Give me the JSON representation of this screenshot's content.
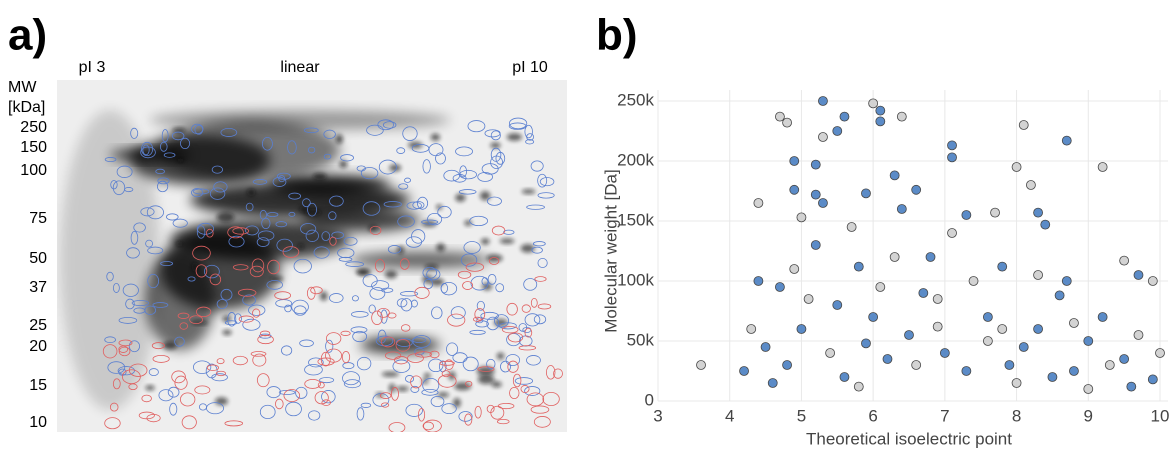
{
  "gel": {
    "label": "a)",
    "top_labels": [
      "pI 3",
      "linear",
      "pI 10"
    ],
    "axis_title": [
      "MW",
      "[kDa]"
    ],
    "mw_markers": [
      250,
      150,
      100,
      75,
      50,
      37,
      25,
      20,
      15,
      10
    ]
  },
  "chart_data": {
    "type": "scatter",
    "label": "b)",
    "x_label": "Theoretical isoelectric point",
    "y_label": "Molecular weight [Da]",
    "xlim": [
      3,
      10
    ],
    "xticks": [
      3,
      4,
      5,
      6,
      7,
      8,
      9,
      10
    ],
    "ylim": [
      0,
      250000
    ],
    "yticks": [
      0,
      {
        "value": 50000,
        "label": "50k"
      },
      {
        "value": 100000,
        "label": "100k"
      },
      {
        "value": 150000,
        "label": "150k"
      },
      {
        "value": 200000,
        "label": "200k"
      },
      {
        "value": 250000,
        "label": "250k"
      }
    ],
    "grid": true,
    "series": [
      {
        "color": "#cfcfcf",
        "x": [
          4.7,
          4.8,
          6.0,
          6.4,
          8.1,
          9.2,
          8.0,
          8.2,
          5.3,
          4.4,
          5.0,
          7.7,
          9.5,
          8.3,
          9.9,
          3.6,
          7.6,
          7.1,
          5.7,
          4.9,
          6.1,
          6.9,
          5.4,
          6.6,
          7.4,
          8.8,
          9.3,
          10.0,
          4.3,
          5.1,
          6.3,
          8.0,
          9.0,
          5.8,
          7.8,
          9.7,
          6.9
        ],
        "y": [
          237000,
          232000,
          248000,
          237000,
          230000,
          195000,
          195000,
          180000,
          220000,
          165000,
          153000,
          157000,
          117000,
          105000,
          100000,
          30000,
          50000,
          140000,
          145000,
          110000,
          95000,
          85000,
          40000,
          30000,
          100000,
          65000,
          30000,
          40000,
          60000,
          85000,
          120000,
          15000,
          10000,
          12000,
          60000,
          55000,
          62000
        ]
      },
      {
        "color": "#4a7fc1",
        "x": [
          5.3,
          5.6,
          5.5,
          6.1,
          6.1,
          7.1,
          7.1,
          8.7,
          4.9,
          5.2,
          6.3,
          4.9,
          5.2,
          5.9,
          6.6,
          6.4,
          5.3,
          8.3,
          8.4,
          7.3,
          9.7,
          8.7,
          4.4,
          4.7,
          5.8,
          7.8,
          8.6,
          9.0,
          8.3,
          5.5,
          6.0,
          5.0,
          4.5,
          6.5,
          7.0,
          4.2,
          4.8,
          5.6,
          6.2,
          7.9,
          8.8,
          9.5,
          9.9,
          5.2,
          6.8,
          7.6,
          8.1,
          9.2,
          4.6,
          5.9,
          6.7,
          7.3,
          8.5,
          9.6
        ],
        "y": [
          250000,
          237000,
          225000,
          242000,
          233000,
          213000,
          203000,
          217000,
          200000,
          197000,
          188000,
          176000,
          172000,
          173000,
          176000,
          160000,
          165000,
          157000,
          147000,
          155000,
          105000,
          100000,
          100000,
          95000,
          112000,
          112000,
          88000,
          50000,
          60000,
          80000,
          70000,
          60000,
          45000,
          55000,
          40000,
          25000,
          30000,
          20000,
          35000,
          30000,
          25000,
          35000,
          18000,
          130000,
          120000,
          70000,
          45000,
          70000,
          15000,
          48000,
          90000,
          25000,
          20000,
          12000
        ]
      }
    ]
  }
}
